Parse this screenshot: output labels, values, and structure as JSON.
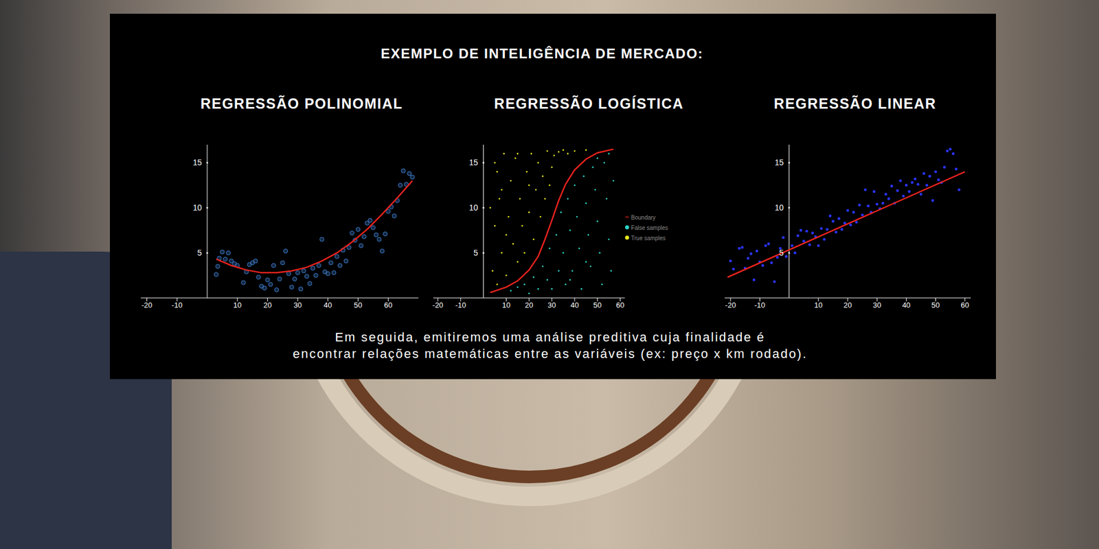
{
  "title": "EXEMPLO DE INTELIGÊNCIA DE MERCADO:",
  "caption": [
    "Em seguida, emitiremos uma análise preditiva cuja finalidade é",
    "encontrar relações matemáticas entre as variáveis (ex: preço x km rodado)."
  ],
  "chart_data": [
    {
      "type": "scatter",
      "title": "REGRESSÃO POLINOMIAL",
      "xlim": [
        -22,
        70
      ],
      "ylim": [
        0,
        17
      ],
      "xticks": [
        -20,
        -10,
        10,
        20,
        30,
        40,
        50,
        60
      ],
      "yticks": [
        5,
        10,
        15
      ],
      "grid": false,
      "series": [
        {
          "type": "scatter",
          "color": "#3f7fd0",
          "marker": "circle",
          "x": [
            3,
            3.5,
            4,
            5,
            6,
            7,
            8,
            9,
            10,
            12,
            13,
            14,
            15,
            16,
            17,
            18,
            19,
            20,
            21,
            22,
            23,
            24,
            25,
            26,
            27,
            28,
            29,
            30,
            31,
            32,
            33,
            34,
            35,
            36,
            37,
            38,
            39,
            40,
            41,
            42,
            43,
            44,
            45,
            46,
            47,
            48,
            49,
            50,
            51,
            52,
            53,
            54,
            55,
            56,
            57,
            58,
            59,
            60,
            61,
            62,
            63,
            64,
            65,
            66,
            67,
            68
          ],
          "values": [
            2.6,
            3.5,
            4.4,
            5.1,
            4.3,
            5.0,
            4.1,
            3.8,
            3.6,
            1.7,
            2.9,
            3.7,
            3.9,
            4.1,
            2.3,
            1.3,
            1.1,
            2.0,
            1.5,
            3.6,
            0.9,
            2.1,
            3.9,
            5.2,
            2.7,
            1.2,
            2.1,
            2.8,
            1.0,
            3.0,
            2.4,
            1.6,
            3.3,
            2.5,
            3.6,
            6.5,
            2.9,
            2.7,
            3.9,
            2.8,
            4.6,
            3.6,
            5.3,
            4.1,
            5.6,
            7.2,
            6.4,
            7.6,
            5.8,
            6.8,
            8.3,
            8.6,
            7.8,
            7.0,
            6.5,
            5.2,
            7.1,
            9.6,
            10.1,
            9.1,
            10.8,
            12.5,
            14.1,
            12.6,
            13.8,
            13.4
          ]
        },
        {
          "type": "line",
          "color": "#e8231e",
          "line_style": "solid",
          "x": [
            3,
            8,
            13,
            18,
            23,
            28,
            33,
            38,
            43,
            48,
            53,
            58,
            63,
            68
          ],
          "values": [
            4.3,
            3.6,
            3.1,
            2.8,
            2.8,
            3.0,
            3.4,
            4.1,
            5.0,
            6.2,
            7.6,
            9.3,
            11.1,
            13.0
          ]
        }
      ]
    },
    {
      "type": "scatter",
      "title": "REGRESSÃO LOGÍSTICA",
      "xlim": [
        -22,
        62
      ],
      "ylim": [
        0,
        17
      ],
      "xticks": [
        -20,
        -10,
        10,
        20,
        30,
        40,
        50,
        60
      ],
      "yticks": [
        5,
        10,
        15
      ],
      "grid": false,
      "legend": "right",
      "series": [
        {
          "name": "True samples",
          "type": "scatter",
          "color": "#e6e61c",
          "marker": "circle",
          "x": [
            4,
            5,
            6,
            7,
            8,
            9,
            10,
            11,
            12,
            13,
            14,
            15,
            16,
            17,
            18,
            19,
            20,
            21,
            22,
            23,
            24,
            25,
            26,
            27,
            28,
            29,
            30,
            31,
            33,
            35,
            37,
            40,
            45,
            6,
            8,
            3,
            5,
            10,
            15,
            20
          ],
          "values": [
            3,
            8,
            14,
            11,
            5,
            16,
            2.5,
            9,
            13,
            6,
            15.5,
            4,
            11,
            8,
            5,
            14,
            9.5,
            16,
            6.5,
            12,
            15,
            9,
            13.5,
            11,
            16.3,
            12.5,
            14.5,
            15.8,
            16.2,
            16.4,
            16,
            16.3,
            16.4,
            1.5,
            12,
            10,
            15,
            7,
            16,
            12.5
          ]
        },
        {
          "name": "False samples",
          "type": "scatter",
          "color": "#2ad4c6",
          "marker": "circle",
          "x": [
            12,
            15,
            18,
            20,
            22,
            24,
            26,
            28,
            29,
            30,
            32,
            33,
            34,
            35,
            36,
            37,
            38,
            39,
            40,
            41,
            42,
            43,
            44,
            45,
            46,
            47,
            48,
            49,
            50,
            51,
            52,
            53,
            54,
            55,
            56,
            57,
            50,
            55,
            45,
            38
          ],
          "values": [
            0.8,
            1.2,
            1.5,
            0.5,
            2.3,
            1,
            3.5,
            2,
            5.5,
            1,
            7,
            3,
            9.5,
            5,
            1.5,
            11,
            7.5,
            3,
            12.5,
            9,
            5.5,
            1,
            13.5,
            10.5,
            7,
            3.5,
            14.5,
            12,
            8.5,
            5,
            1.5,
            15,
            11,
            6.5,
            3,
            13,
            15.5,
            16,
            4,
            2
          ]
        },
        {
          "name": "Boundary",
          "type": "line",
          "color": "#e8231e",
          "line_style": "solid",
          "x": [
            3,
            10,
            15,
            20,
            24,
            27,
            30,
            33,
            36,
            40,
            45,
            50,
            57
          ],
          "values": [
            0.6,
            1.2,
            1.9,
            3.1,
            4.6,
            6.5,
            8.6,
            10.8,
            12.6,
            14.2,
            15.4,
            16.1,
            16.5
          ]
        }
      ]
    },
    {
      "type": "scatter",
      "title": "REGRESSÃO LINEAR",
      "xlim": [
        -22,
        62
      ],
      "ylim": [
        0,
        17
      ],
      "xticks": [
        -20,
        -10,
        10,
        20,
        30,
        40,
        50,
        60
      ],
      "yticks": [
        5,
        10,
        15
      ],
      "grid": false,
      "series": [
        {
          "type": "scatter",
          "color": "#2a35ff",
          "marker": "circle",
          "x": [
            -20,
            -19,
            -17,
            -16,
            -15,
            -14,
            -13,
            -12,
            -11,
            -10,
            -9,
            -8,
            -7,
            -6,
            -5,
            -4,
            -3,
            -2,
            -1,
            1,
            2,
            3,
            4,
            5,
            6,
            7,
            8,
            9,
            10,
            11,
            12,
            13,
            14,
            15,
            16,
            17,
            18,
            19,
            20,
            21,
            22,
            23,
            24,
            25,
            26,
            27,
            28,
            29,
            30,
            31,
            32,
            33,
            34,
            35,
            36,
            37,
            38,
            39,
            40,
            41,
            42,
            43,
            44,
            45,
            46,
            47,
            48,
            49,
            50,
            51,
            52,
            53,
            54,
            55,
            56,
            57,
            58
          ],
          "values": [
            4.1,
            3.2,
            5.5,
            5.6,
            3.3,
            4.4,
            4.9,
            2.0,
            5.2,
            4.0,
            3.6,
            5.8,
            6.0,
            3.9,
            1.8,
            4.5,
            5.5,
            6.7,
            4.6,
            5.8,
            5.0,
            6.9,
            7.5,
            6.3,
            7.4,
            5.9,
            7.2,
            6.8,
            5.8,
            7.7,
            6.5,
            7.6,
            9.1,
            8.5,
            7.3,
            8.8,
            7.6,
            8.3,
            9.7,
            8.1,
            9.5,
            8.4,
            10.3,
            9.2,
            12.0,
            10.2,
            9.5,
            11.8,
            10.4,
            9.9,
            10.5,
            11.5,
            11.0,
            12.4,
            10.5,
            11.9,
            13.0,
            11.3,
            12.5,
            11.8,
            12.8,
            13.2,
            12.6,
            11.5,
            13.8,
            12.5,
            13.5,
            10.8,
            14.0,
            13.1,
            12.8,
            14.5,
            16.3,
            16.5,
            16.0,
            14.3,
            12.0
          ]
        },
        {
          "type": "line",
          "color": "#e8231e",
          "line_style": "solid",
          "x": [
            -21,
            60
          ],
          "values": [
            2.3,
            14
          ]
        }
      ]
    }
  ]
}
